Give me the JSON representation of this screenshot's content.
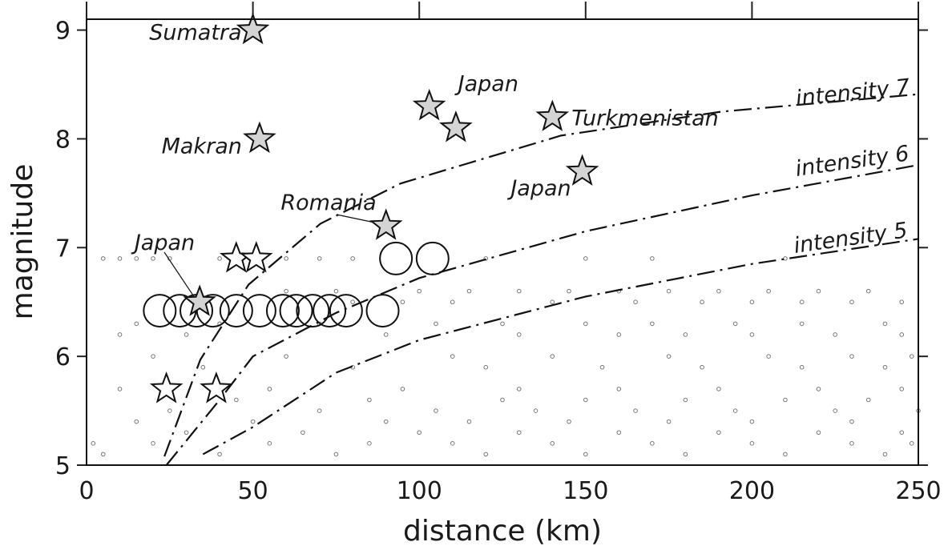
{
  "chart_data": {
    "type": "scatter",
    "xlabel": "distance (km)",
    "ylabel": "magnitude",
    "xlim": [
      0,
      250
    ],
    "ylim": [
      5,
      9.1
    ],
    "xticks": [
      0,
      50,
      100,
      150,
      200,
      250
    ],
    "yticks": [
      5,
      6,
      7,
      8,
      9
    ],
    "stars": {
      "color": "#d4d4d4",
      "points": [
        [
          50,
          9.0
        ],
        [
          52,
          8.0
        ],
        [
          103,
          8.3
        ],
        [
          111,
          8.1
        ],
        [
          140,
          8.2
        ],
        [
          149,
          7.7
        ],
        [
          90,
          7.2
        ],
        [
          34,
          6.5
        ]
      ],
      "labels": [
        "Sumatra",
        "Makran",
        "Japan",
        null,
        "Turkmenistan",
        "Japan",
        "Romania",
        "Japan"
      ]
    },
    "open_stars": {
      "points": [
        [
          45,
          6.9
        ],
        [
          51,
          6.9
        ],
        [
          24,
          5.7
        ],
        [
          39,
          5.7
        ]
      ]
    },
    "circles": {
      "points": [
        [
          22,
          6.42
        ],
        [
          28,
          6.42
        ],
        [
          33,
          6.42
        ],
        [
          38,
          6.42
        ],
        [
          45,
          6.42
        ],
        [
          52,
          6.42
        ],
        [
          59,
          6.42
        ],
        [
          63,
          6.42
        ],
        [
          68,
          6.42
        ],
        [
          73,
          6.42
        ],
        [
          78,
          6.42
        ],
        [
          89,
          6.42
        ],
        [
          93,
          6.9
        ],
        [
          104,
          6.9
        ]
      ]
    },
    "events": {
      "color": "#777777",
      "points": [
        [
          5,
          6.9
        ],
        [
          10,
          6.9
        ],
        [
          15,
          6.9
        ],
        [
          20,
          6.9
        ],
        [
          25,
          6.9
        ],
        [
          40,
          6.9
        ],
        [
          60,
          6.9
        ],
        [
          70,
          6.9
        ],
        [
          80,
          6.9
        ],
        [
          120,
          6.9
        ],
        [
          150,
          6.9
        ],
        [
          170,
          6.9
        ],
        [
          210,
          6.9
        ],
        [
          60,
          6.6
        ],
        [
          75,
          6.6
        ],
        [
          100,
          6.6
        ],
        [
          115,
          6.6
        ],
        [
          130,
          6.6
        ],
        [
          145,
          6.6
        ],
        [
          160,
          6.6
        ],
        [
          175,
          6.6
        ],
        [
          190,
          6.6
        ],
        [
          205,
          6.6
        ],
        [
          220,
          6.6
        ],
        [
          235,
          6.6
        ],
        [
          80,
          6.5
        ],
        [
          95,
          6.5
        ],
        [
          110,
          6.5
        ],
        [
          140,
          6.5
        ],
        [
          165,
          6.5
        ],
        [
          185,
          6.5
        ],
        [
          200,
          6.5
        ],
        [
          215,
          6.5
        ],
        [
          230,
          6.5
        ],
        [
          245,
          6.5
        ],
        [
          15,
          6.3
        ],
        [
          40,
          6.3
        ],
        [
          70,
          6.3
        ],
        [
          105,
          6.3
        ],
        [
          125,
          6.3
        ],
        [
          150,
          6.3
        ],
        [
          170,
          6.3
        ],
        [
          195,
          6.3
        ],
        [
          215,
          6.3
        ],
        [
          240,
          6.3
        ],
        [
          10,
          6.2
        ],
        [
          30,
          6.2
        ],
        [
          90,
          6.2
        ],
        [
          130,
          6.2
        ],
        [
          160,
          6.2
        ],
        [
          180,
          6.2
        ],
        [
          200,
          6.2
        ],
        [
          225,
          6.2
        ],
        [
          245,
          6.2
        ],
        [
          20,
          6.0
        ],
        [
          60,
          6.0
        ],
        [
          110,
          6.0
        ],
        [
          140,
          6.0
        ],
        [
          175,
          6.0
        ],
        [
          205,
          6.0
        ],
        [
          230,
          6.0
        ],
        [
          248,
          6.0
        ],
        [
          35,
          5.9
        ],
        [
          80,
          5.9
        ],
        [
          120,
          5.9
        ],
        [
          155,
          5.9
        ],
        [
          185,
          5.9
        ],
        [
          215,
          5.9
        ],
        [
          240,
          5.9
        ],
        [
          10,
          5.7
        ],
        [
          55,
          5.7
        ],
        [
          95,
          5.7
        ],
        [
          130,
          5.7
        ],
        [
          160,
          5.7
        ],
        [
          190,
          5.7
        ],
        [
          220,
          5.7
        ],
        [
          245,
          5.7
        ],
        [
          45,
          5.6
        ],
        [
          85,
          5.6
        ],
        [
          125,
          5.6
        ],
        [
          150,
          5.6
        ],
        [
          180,
          5.6
        ],
        [
          210,
          5.6
        ],
        [
          235,
          5.6
        ],
        [
          25,
          5.5
        ],
        [
          70,
          5.5
        ],
        [
          105,
          5.5
        ],
        [
          135,
          5.5
        ],
        [
          165,
          5.5
        ],
        [
          195,
          5.5
        ],
        [
          225,
          5.5
        ],
        [
          250,
          5.5
        ],
        [
          15,
          5.4
        ],
        [
          50,
          5.4
        ],
        [
          90,
          5.4
        ],
        [
          115,
          5.4
        ],
        [
          145,
          5.4
        ],
        [
          175,
          5.4
        ],
        [
          200,
          5.4
        ],
        [
          230,
          5.4
        ],
        [
          30,
          5.3
        ],
        [
          65,
          5.3
        ],
        [
          100,
          5.3
        ],
        [
          130,
          5.3
        ],
        [
          160,
          5.3
        ],
        [
          190,
          5.3
        ],
        [
          220,
          5.3
        ],
        [
          245,
          5.3
        ],
        [
          2,
          5.2
        ],
        [
          20,
          5.2
        ],
        [
          55,
          5.2
        ],
        [
          85,
          5.2
        ],
        [
          110,
          5.2
        ],
        [
          140,
          5.2
        ],
        [
          170,
          5.2
        ],
        [
          200,
          5.2
        ],
        [
          230,
          5.2
        ],
        [
          248,
          5.2
        ],
        [
          5,
          5.1
        ],
        [
          40,
          5.1
        ],
        [
          75,
          5.1
        ],
        [
          120,
          5.1
        ],
        [
          150,
          5.1
        ],
        [
          180,
          5.1
        ],
        [
          210,
          5.1
        ],
        [
          240,
          5.1
        ]
      ]
    },
    "curves": [
      {
        "name": "intensity 7",
        "points": [
          [
            23.4,
            5.08
          ],
          [
            34.2,
            5.97
          ],
          [
            48.7,
            6.66
          ],
          [
            70.3,
            7.22
          ],
          [
            94.4,
            7.59
          ],
          [
            142.6,
            8.03
          ],
          [
            190.8,
            8.25
          ],
          [
            250,
            8.41
          ]
        ]
      },
      {
        "name": "intensity 6",
        "points": [
          [
            24,
            5.0
          ],
          [
            40,
            5.6
          ],
          [
            50,
            6.0
          ],
          [
            75,
            6.4
          ],
          [
            100,
            6.72
          ],
          [
            150,
            7.15
          ],
          [
            200,
            7.48
          ],
          [
            250,
            7.76
          ]
        ]
      },
      {
        "name": "intensity 5",
        "points": [
          [
            35,
            5.1
          ],
          [
            50,
            5.35
          ],
          [
            75,
            5.85
          ],
          [
            100,
            6.15
          ],
          [
            150,
            6.55
          ],
          [
            200,
            6.85
          ],
          [
            250,
            7.08
          ]
        ]
      }
    ]
  }
}
